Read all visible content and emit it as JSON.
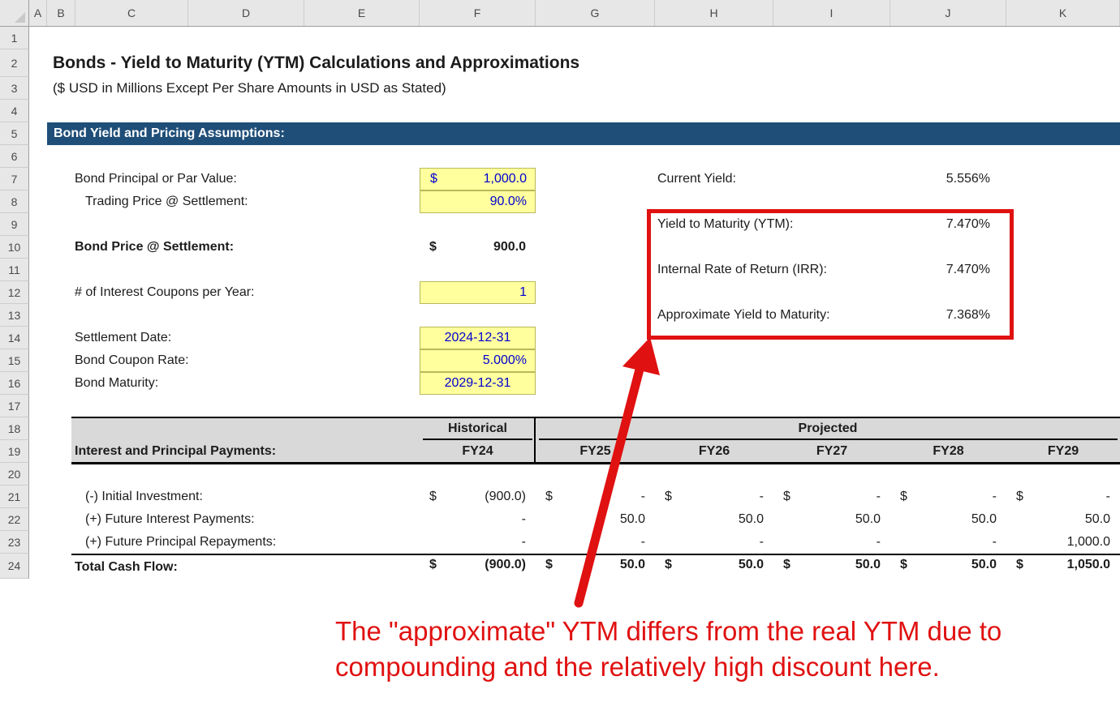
{
  "grid": {
    "columns": [
      "A",
      "B",
      "C",
      "D",
      "E",
      "F",
      "G",
      "H",
      "I",
      "J",
      "K"
    ],
    "rows": [
      "1",
      "2",
      "3",
      "4",
      "5",
      "6",
      "7",
      "8",
      "9",
      "10",
      "11",
      "12",
      "13",
      "14",
      "15",
      "16",
      "17",
      "18",
      "19",
      "20",
      "21",
      "22",
      "23",
      "24"
    ]
  },
  "header": {
    "title": "Bonds - Yield to Maturity (YTM) Calculations and Approximations",
    "subtitle": "($ USD in Millions Except Per Share Amounts in USD as Stated)"
  },
  "section": {
    "title": "Bond Yield and Pricing Assumptions:"
  },
  "assumptions": {
    "principal": {
      "label": "Bond Principal or Par Value:",
      "currency": "$",
      "value": "1,000.0"
    },
    "trading_price": {
      "label": "Trading Price @ Settlement:",
      "value": "90.0%"
    },
    "bond_price": {
      "label": "Bond Price @ Settlement:",
      "currency": "$",
      "value": "900.0"
    },
    "coupons_per_year": {
      "label": "# of Interest Coupons per Year:",
      "value": "1"
    },
    "settlement_date": {
      "label": "Settlement Date:",
      "value": "2024-12-31"
    },
    "coupon_rate": {
      "label": "Bond Coupon Rate:",
      "value": "5.000%"
    },
    "maturity": {
      "label": "Bond Maturity:",
      "value": "2029-12-31"
    }
  },
  "yields": {
    "current": {
      "label": "Current Yield:",
      "value": "5.556%"
    },
    "ytm": {
      "label": "Yield to Maturity (YTM):",
      "value": "7.470%"
    },
    "irr": {
      "label": "Internal Rate of Return (IRR):",
      "value": "7.470%"
    },
    "approx": {
      "label": "Approximate Yield to Maturity:",
      "value": "7.368%"
    }
  },
  "table": {
    "section_label": "Interest and Principal Payments:",
    "historical_label": "Historical",
    "projected_label": "Projected",
    "columns": [
      "FY24",
      "FY25",
      "FY26",
      "FY27",
      "FY28",
      "FY29"
    ],
    "rows": [
      {
        "label": "(-) Initial Investment:",
        "bold": false,
        "cells": [
          {
            "d": "$",
            "v": "(900.0)"
          },
          {
            "d": "$",
            "v": "-"
          },
          {
            "d": "$",
            "v": "-"
          },
          {
            "d": "$",
            "v": "-"
          },
          {
            "d": "$",
            "v": "-"
          },
          {
            "d": "$",
            "v": "-"
          }
        ]
      },
      {
        "label": "(+) Future Interest Payments:",
        "bold": false,
        "cells": [
          {
            "d": "",
            "v": "-"
          },
          {
            "d": "",
            "v": "50.0"
          },
          {
            "d": "",
            "v": "50.0"
          },
          {
            "d": "",
            "v": "50.0"
          },
          {
            "d": "",
            "v": "50.0"
          },
          {
            "d": "",
            "v": "50.0"
          }
        ]
      },
      {
        "label": "(+) Future Principal Repayments:",
        "bold": false,
        "cells": [
          {
            "d": "",
            "v": "-"
          },
          {
            "d": "",
            "v": "-"
          },
          {
            "d": "",
            "v": "-"
          },
          {
            "d": "",
            "v": "-"
          },
          {
            "d": "",
            "v": "-"
          },
          {
            "d": "",
            "v": "1,000.0"
          }
        ]
      },
      {
        "label": "Total Cash Flow:",
        "bold": true,
        "cells": [
          {
            "d": "$",
            "v": "(900.0)"
          },
          {
            "d": "$",
            "v": "50.0"
          },
          {
            "d": "$",
            "v": "50.0"
          },
          {
            "d": "$",
            "v": "50.0"
          },
          {
            "d": "$",
            "v": "50.0"
          },
          {
            "d": "$",
            "v": "1,050.0"
          }
        ]
      }
    ]
  },
  "annotation": {
    "line1": "The \"approximate\" YTM differs from the real YTM due to",
    "line2": "compounding and the relatively high discount here."
  },
  "colors": {
    "section_navy": "#1f4e78",
    "input_fill": "#ffff9e",
    "input_border": "#b9b95a",
    "input_text_blue": "#0000d0",
    "table_header_gray": "#d9d9d9",
    "annotation_red": "#e01111"
  }
}
